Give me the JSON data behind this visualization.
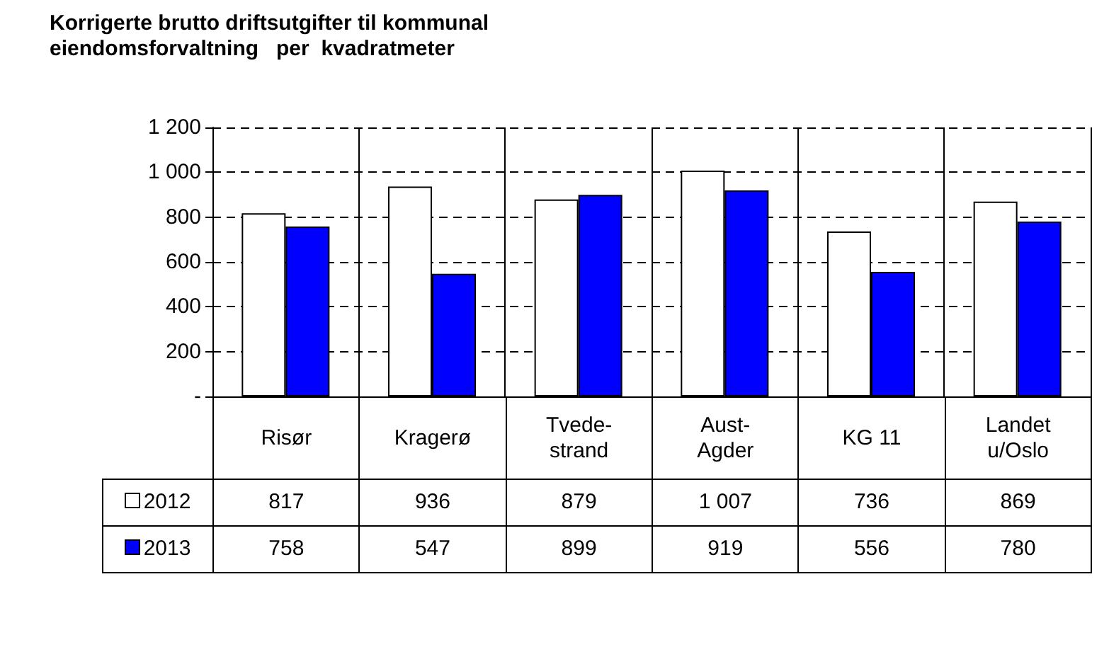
{
  "chart_data": {
    "type": "bar",
    "title": "Korrigerte brutto driftsutgifter til kommunal\neiendomsforvaltning   per  kvadratmeter",
    "categories": [
      "Risør",
      "Kragerø",
      "Tvede-\nstrand",
      "Aust-\nAgder",
      "KG 11",
      "Landet\nu/Oslo"
    ],
    "series": [
      {
        "name": "2012",
        "color": "#ffffff",
        "values": [
          817,
          936,
          879,
          1007,
          736,
          869
        ],
        "value_labels": [
          "817",
          "936",
          "879",
          "1 007",
          "736",
          "869"
        ]
      },
      {
        "name": "2013",
        "color": "#0000ff",
        "values": [
          758,
          547,
          899,
          919,
          556,
          780
        ],
        "value_labels": [
          "758",
          "547",
          "899",
          "919",
          "556",
          "780"
        ]
      }
    ],
    "ylim": [
      0,
      1200
    ],
    "yticks": [
      {
        "value": 0,
        "label": "-"
      },
      200,
      400,
      600,
      800,
      {
        "value": 1000,
        "label": "1 000"
      },
      {
        "value": 1200,
        "label": "1 200"
      }
    ],
    "grid": true,
    "legend": "bottom"
  }
}
